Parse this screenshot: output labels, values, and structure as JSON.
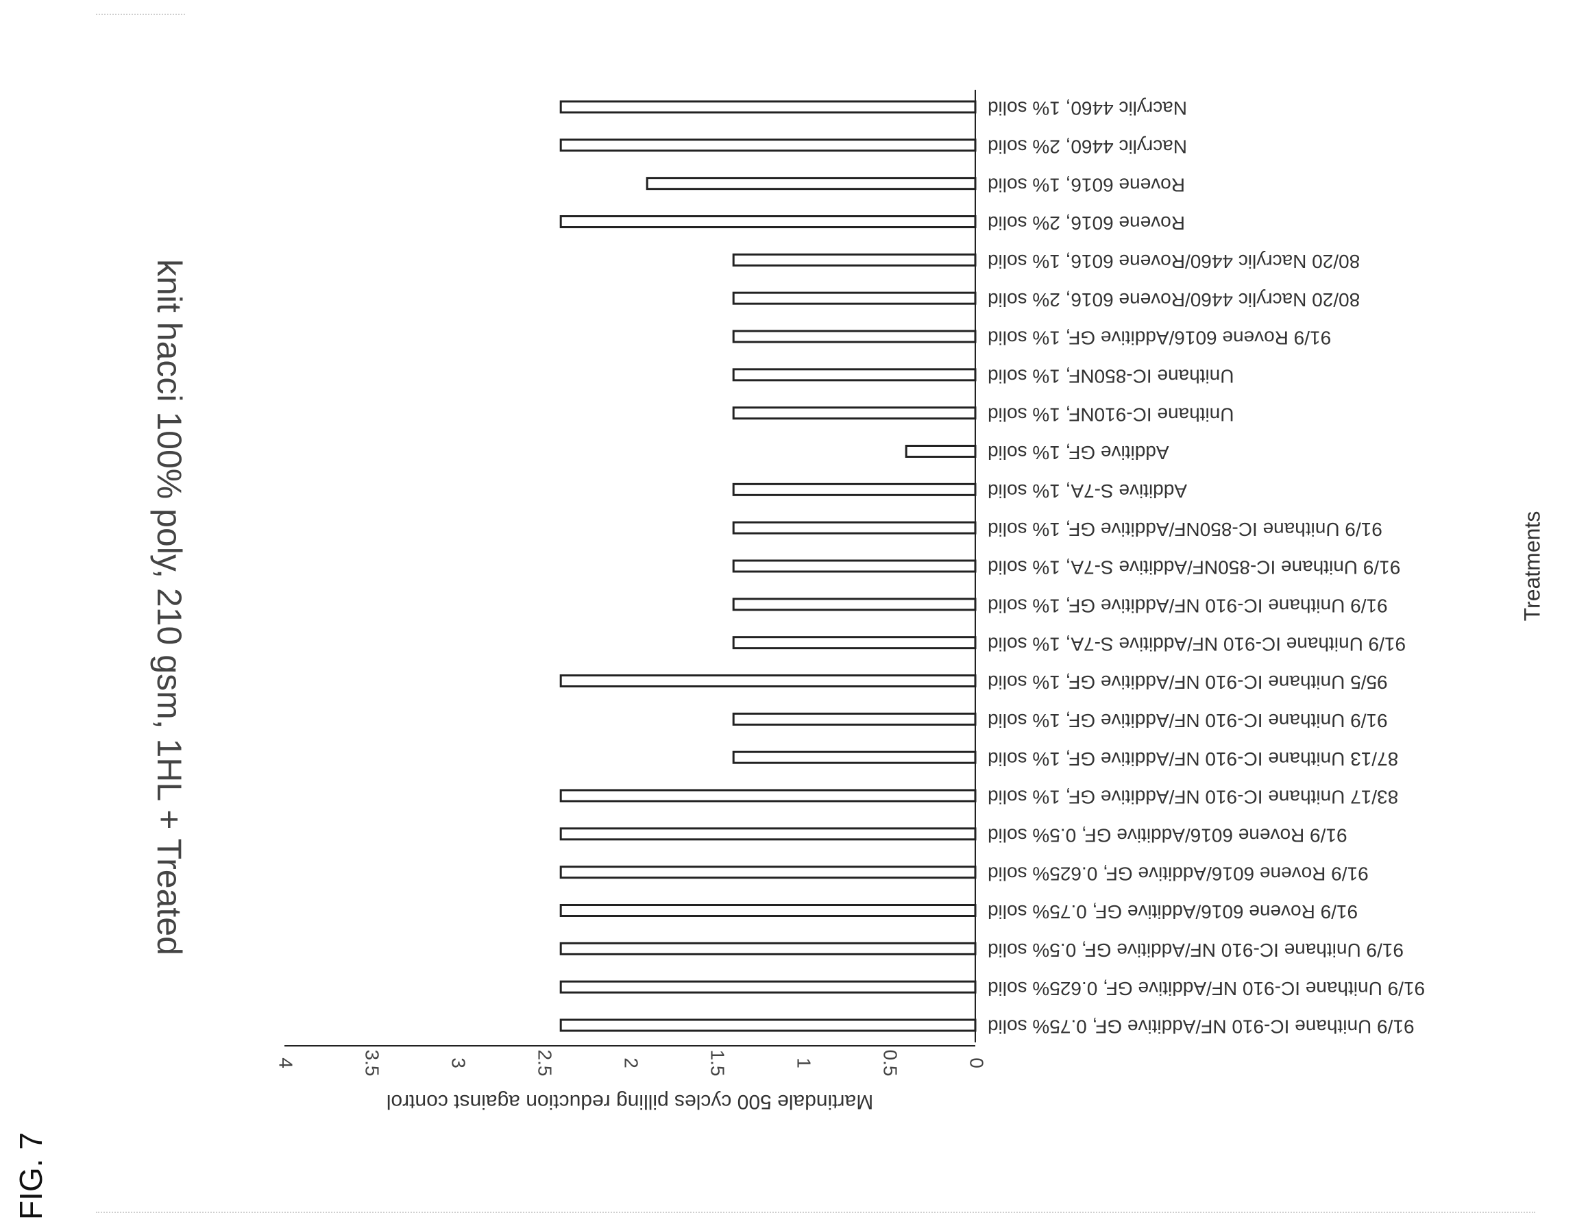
{
  "figure_label": "FIG. 7",
  "chart_data": {
    "type": "bar",
    "orientation": "horizontal",
    "rotation": "page rotated 90 degrees",
    "title": "knit hacci 100% poly, 210 gsm, 1HL + Treated",
    "xlabel": "Treatments",
    "ylabel": "Martindale 500 cycles pilling reduction against control",
    "ylim": [
      0,
      4
    ],
    "ticks": [
      "0",
      "0.5",
      "1",
      "1.5",
      "2",
      "2.5",
      "3",
      "3.5",
      "4"
    ],
    "grid": false,
    "bar_fill": "#ffffff",
    "bar_stroke": "#222222",
    "categories": [
      "Nacrylic 4460, 1% solid",
      "Nacrylic 4460, 2% solid",
      "Rovene 6016, 1% solid",
      "Rovene 6016, 2% solid",
      "80/20 Nacrylic 4460/Rovene 6016, 1% solid",
      "80/20 Nacrylic 4460/Rovene 6016, 2% solid",
      "91/9 Rovene 6016/Additive GF, 1% solid",
      "Unithane IC-850NF, 1% solid",
      "Unithane IC-910NF, 1% solid",
      "Additive GF, 1% solid",
      "Additive S-7A, 1% solid",
      "91/9 Unithane IC-850NF/Additive GF, 1% solid",
      "91/9 Unithane IC-850NF/Additive S-7A, 1% solid",
      "91/9 Unithane IC-910 NF/Additive GF, 1% solid",
      "91/9 Unithane IC-910 NF/Additive S-7A, 1% solid",
      "95/5 Unithane IC-910 NF/Additive GF, 1% solid",
      "91/9 Unithane IC-910 NF/Additive GF, 1% solid",
      "87/13 Unithane IC-910 NF/Additive GF, 1% solid",
      "83/17 Unithane IC-910 NF/Additive GF, 1% solid",
      "91/9 Rovene 6016/Additive GF, 0.5% solid",
      "91/9 Rovene 6016/Additive GF, 0.625% solid",
      "91/9 Rovene 6016/Additive GF, 0.75% solid",
      "91/9 Unithane IC-910 NF/Additive GF, 0.5% solid",
      "91/9 Unithane IC-910 NF/Additive GF, 0.625% solid",
      "91/9 Unithane IC-910 NF/Additive GF, 0.75% solid"
    ],
    "values": [
      2.4,
      2.4,
      1.9,
      2.4,
      1.4,
      1.4,
      1.4,
      1.4,
      1.4,
      0.4,
      1.4,
      1.4,
      1.4,
      1.4,
      1.4,
      2.4,
      1.4,
      1.4,
      2.4,
      2.4,
      2.4,
      2.4,
      2.4,
      2.4,
      2.4
    ]
  }
}
